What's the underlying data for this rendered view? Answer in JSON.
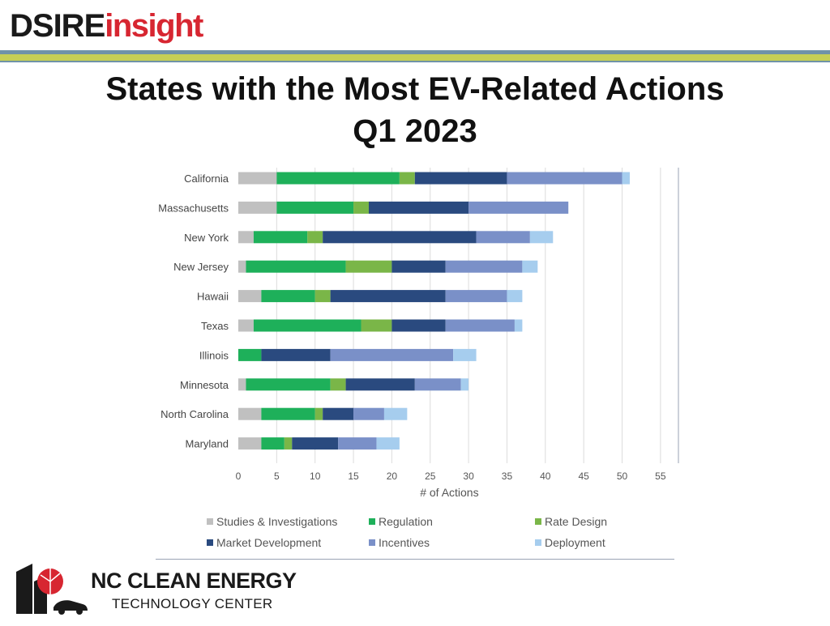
{
  "branding": {
    "top_logo_dsire": "DSIRE",
    "top_logo_insight": "insight",
    "bottom_logo_line1": "NC CLEAN ENERGY",
    "bottom_logo_line2": "TECHNOLOGY CENTER"
  },
  "colors": {
    "band_blue": "#6f93a8",
    "band_green": "#c5cf55",
    "insight_red": "#d72631"
  },
  "chart_data": {
    "type": "bar",
    "orientation": "horizontal",
    "stacked": true,
    "title": "States with the Most EV-Related Actions",
    "subtitle": "Q1 2023",
    "xlabel": "# of Actions",
    "ylabel": "",
    "xlim": [
      0,
      57
    ],
    "xticks": [
      0,
      5,
      10,
      15,
      20,
      25,
      30,
      35,
      40,
      45,
      50,
      55
    ],
    "grid": true,
    "legend_position": "bottom",
    "categories": [
      "California",
      "Massachusetts",
      "New York",
      "New Jersey",
      "Hawaii",
      "Texas",
      "Illinois",
      "Minnesota",
      "North Carolina",
      "Maryland"
    ],
    "series": [
      {
        "name": "Studies & Investigations",
        "color": "#c0c0c0",
        "values": [
          5,
          5,
          2,
          1,
          3,
          2,
          0,
          1,
          3,
          3
        ]
      },
      {
        "name": "Regulation",
        "color": "#1eb05a",
        "values": [
          16,
          10,
          7,
          13,
          7,
          14,
          3,
          11,
          7,
          3
        ]
      },
      {
        "name": "Rate Design",
        "color": "#7ab648",
        "values": [
          2,
          2,
          2,
          6,
          2,
          4,
          0,
          2,
          1,
          1
        ]
      },
      {
        "name": "Market Development",
        "color": "#2a4a7f",
        "values": [
          12,
          13,
          20,
          7,
          15,
          7,
          9,
          9,
          4,
          6
        ]
      },
      {
        "name": "Incentives",
        "color": "#7a90c8",
        "values": [
          15,
          13,
          7,
          10,
          8,
          9,
          16,
          6,
          4,
          5
        ]
      },
      {
        "name": "Deployment",
        "color": "#a6cdee",
        "values": [
          1,
          0,
          3,
          2,
          2,
          1,
          3,
          1,
          3,
          3
        ]
      }
    ]
  }
}
